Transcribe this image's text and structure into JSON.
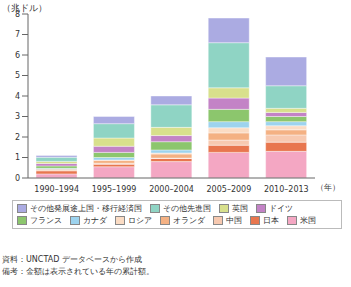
{
  "chart_data": {
    "type": "bar",
    "stacked": true,
    "grid": false,
    "y_label": "（兆ドル）",
    "x_label": "（年）",
    "categories": [
      "1990–1994",
      "1995–1999",
      "2000–2004",
      "2005–2009",
      "2010–2013"
    ],
    "ylim": [
      0,
      8
    ],
    "yticks": [
      0,
      1,
      2,
      3,
      4,
      5,
      6,
      7,
      8
    ],
    "series": [
      {
        "name": "米国",
        "color": "#f4a7c3",
        "values": [
          0.2,
          0.55,
          0.8,
          1.25,
          1.3
        ]
      },
      {
        "name": "日本",
        "color": "#e8764e",
        "values": [
          0.15,
          0.12,
          0.15,
          0.35,
          0.45
        ]
      },
      {
        "name": "中国",
        "color": "#f7c9b0",
        "values": [
          0.02,
          0.05,
          0.02,
          0.25,
          0.35
        ]
      },
      {
        "name": "オランダ",
        "color": "#f4b183",
        "values": [
          0.06,
          0.15,
          0.2,
          0.35,
          0.25
        ]
      },
      {
        "name": "ロシア",
        "color": "#fbdcc4",
        "values": [
          0,
          0.01,
          0.05,
          0.25,
          0.2
        ]
      },
      {
        "name": "カナダ",
        "color": "#9dd3ee",
        "values": [
          0.04,
          0.12,
          0.15,
          0.3,
          0.2
        ]
      },
      {
        "name": "フランス",
        "color": "#8cc66d",
        "values": [
          0.12,
          0.25,
          0.4,
          0.6,
          0.25
        ]
      },
      {
        "name": "ドイツ",
        "color": "#c383c6",
        "values": [
          0.12,
          0.3,
          0.3,
          0.55,
          0.2
        ]
      },
      {
        "name": "英国",
        "color": "#d8e08c",
        "values": [
          0.1,
          0.4,
          0.4,
          0.5,
          0.2
        ]
      },
      {
        "name": "その他先進国",
        "color": "#8fd4c4",
        "values": [
          0.2,
          0.7,
          1.1,
          2.2,
          1.1
        ]
      },
      {
        "name": "その他発展途上国・移行経済国",
        "color": "#ababe2",
        "values": [
          0.09,
          0.35,
          0.43,
          1.2,
          1.4
        ]
      }
    ],
    "notes": [
      "資料：UNCTAD データベースから作成",
      "備考：金額は表示されている年の累計額。"
    ]
  }
}
